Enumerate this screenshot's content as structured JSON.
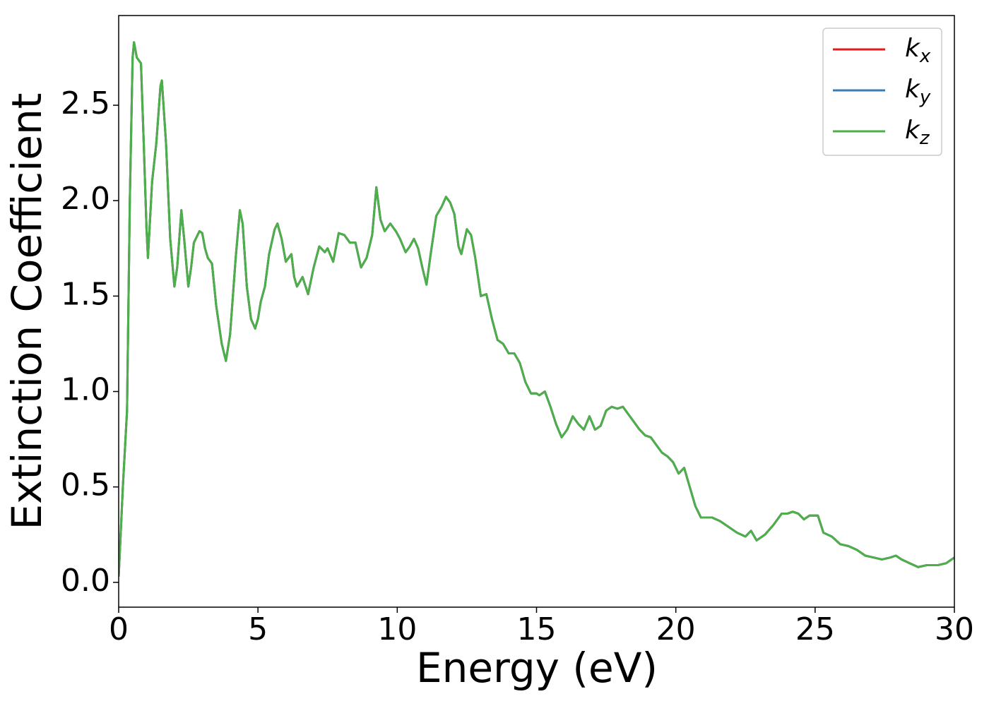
{
  "chart_data": {
    "type": "line",
    "x_label": "Energy (eV)",
    "y_label": "Extinction Coefficient",
    "x": [
      0,
      0.15,
      0.3,
      0.4,
      0.5,
      0.55,
      0.65,
      0.8,
      0.9,
      1.0,
      1.05,
      1.2,
      1.35,
      1.5,
      1.55,
      1.7,
      1.85,
      2.0,
      2.1,
      2.25,
      2.35,
      2.5,
      2.6,
      2.7,
      2.9,
      3.0,
      3.1,
      3.2,
      3.35,
      3.5,
      3.7,
      3.85,
      4.0,
      4.2,
      4.35,
      4.45,
      4.6,
      4.75,
      4.9,
      5.0,
      5.1,
      5.25,
      5.4,
      5.6,
      5.7,
      5.85,
      6.0,
      6.1,
      6.2,
      6.3,
      6.4,
      6.6,
      6.8,
      7.0,
      7.2,
      7.4,
      7.5,
      7.7,
      7.9,
      8.1,
      8.3,
      8.5,
      8.7,
      8.9,
      9.1,
      9.25,
      9.4,
      9.55,
      9.75,
      9.95,
      10.1,
      10.3,
      10.45,
      10.6,
      10.75,
      10.9,
      11.05,
      11.2,
      11.4,
      11.6,
      11.75,
      11.9,
      12.05,
      12.2,
      12.3,
      12.5,
      12.65,
      12.8,
      13.0,
      13.2,
      13.4,
      13.6,
      13.8,
      14.0,
      14.2,
      14.4,
      14.6,
      14.8,
      15.0,
      15.1,
      15.3,
      15.5,
      15.7,
      15.9,
      16.1,
      16.3,
      16.5,
      16.7,
      16.9,
      17.1,
      17.3,
      17.5,
      17.7,
      17.9,
      18.1,
      18.3,
      18.5,
      18.7,
      18.9,
      19.1,
      19.3,
      19.5,
      19.7,
      19.9,
      20.1,
      20.3,
      20.5,
      20.7,
      20.9,
      21.1,
      21.3,
      21.6,
      21.9,
      22.2,
      22.5,
      22.7,
      22.9,
      23.2,
      23.5,
      23.8,
      24.0,
      24.2,
      24.4,
      24.6,
      24.8,
      25.1,
      25.3,
      25.6,
      25.9,
      26.2,
      26.5,
      26.8,
      27.1,
      27.4,
      27.7,
      27.9,
      28.1,
      28.4,
      28.7,
      29.0,
      29.4,
      29.7,
      30.0
    ],
    "series": [
      {
        "name": "k_x",
        "color": "#e41a1c",
        "values": [
          0.03,
          0.5,
          0.9,
          2.0,
          2.75,
          2.83,
          2.75,
          2.72,
          2.3,
          1.85,
          1.7,
          2.1,
          2.3,
          2.6,
          2.63,
          2.3,
          1.8,
          1.55,
          1.65,
          1.95,
          1.8,
          1.55,
          1.65,
          1.78,
          1.84,
          1.83,
          1.75,
          1.7,
          1.67,
          1.45,
          1.25,
          1.16,
          1.3,
          1.7,
          1.95,
          1.88,
          1.55,
          1.38,
          1.33,
          1.38,
          1.47,
          1.55,
          1.72,
          1.85,
          1.88,
          1.8,
          1.68,
          1.7,
          1.72,
          1.6,
          1.55,
          1.6,
          1.51,
          1.65,
          1.76,
          1.73,
          1.75,
          1.68,
          1.83,
          1.82,
          1.78,
          1.78,
          1.65,
          1.7,
          1.82,
          2.07,
          1.9,
          1.84,
          1.88,
          1.84,
          1.8,
          1.73,
          1.76,
          1.8,
          1.75,
          1.65,
          1.56,
          1.72,
          1.92,
          1.97,
          2.02,
          1.99,
          1.93,
          1.76,
          1.72,
          1.85,
          1.82,
          1.7,
          1.5,
          1.51,
          1.38,
          1.27,
          1.25,
          1.2,
          1.2,
          1.15,
          1.05,
          0.99,
          0.99,
          0.98,
          1.0,
          0.92,
          0.83,
          0.76,
          0.8,
          0.87,
          0.83,
          0.8,
          0.87,
          0.8,
          0.82,
          0.9,
          0.92,
          0.91,
          0.92,
          0.88,
          0.84,
          0.8,
          0.77,
          0.76,
          0.72,
          0.68,
          0.66,
          0.63,
          0.57,
          0.6,
          0.5,
          0.4,
          0.34,
          0.34,
          0.34,
          0.32,
          0.29,
          0.26,
          0.24,
          0.27,
          0.22,
          0.25,
          0.3,
          0.36,
          0.36,
          0.37,
          0.36,
          0.33,
          0.35,
          0.35,
          0.26,
          0.24,
          0.2,
          0.19,
          0.17,
          0.14,
          0.13,
          0.12,
          0.13,
          0.14,
          0.12,
          0.1,
          0.08,
          0.09,
          0.09,
          0.1,
          0.13
        ]
      },
      {
        "name": "k_y",
        "color": "#377eb8",
        "values": [
          0.03,
          0.5,
          0.9,
          2.0,
          2.75,
          2.83,
          2.75,
          2.72,
          2.3,
          1.85,
          1.7,
          2.1,
          2.3,
          2.6,
          2.63,
          2.3,
          1.8,
          1.55,
          1.65,
          1.95,
          1.8,
          1.55,
          1.65,
          1.78,
          1.84,
          1.83,
          1.75,
          1.7,
          1.67,
          1.45,
          1.25,
          1.16,
          1.3,
          1.7,
          1.95,
          1.88,
          1.55,
          1.38,
          1.33,
          1.38,
          1.47,
          1.55,
          1.72,
          1.85,
          1.88,
          1.8,
          1.68,
          1.7,
          1.72,
          1.6,
          1.55,
          1.6,
          1.51,
          1.65,
          1.76,
          1.73,
          1.75,
          1.68,
          1.83,
          1.82,
          1.78,
          1.78,
          1.65,
          1.7,
          1.82,
          2.07,
          1.9,
          1.84,
          1.88,
          1.84,
          1.8,
          1.73,
          1.76,
          1.8,
          1.75,
          1.65,
          1.56,
          1.72,
          1.92,
          1.97,
          2.02,
          1.99,
          1.93,
          1.76,
          1.72,
          1.85,
          1.82,
          1.7,
          1.5,
          1.51,
          1.38,
          1.27,
          1.25,
          1.2,
          1.2,
          1.15,
          1.05,
          0.99,
          0.99,
          0.98,
          1.0,
          0.92,
          0.83,
          0.76,
          0.8,
          0.87,
          0.83,
          0.8,
          0.87,
          0.8,
          0.82,
          0.9,
          0.92,
          0.91,
          0.92,
          0.88,
          0.84,
          0.8,
          0.77,
          0.76,
          0.72,
          0.68,
          0.66,
          0.63,
          0.57,
          0.6,
          0.5,
          0.4,
          0.34,
          0.34,
          0.34,
          0.32,
          0.29,
          0.26,
          0.24,
          0.27,
          0.22,
          0.25,
          0.3,
          0.36,
          0.36,
          0.37,
          0.36,
          0.33,
          0.35,
          0.35,
          0.26,
          0.24,
          0.2,
          0.19,
          0.17,
          0.14,
          0.13,
          0.12,
          0.13,
          0.14,
          0.12,
          0.1,
          0.08,
          0.09,
          0.09,
          0.1,
          0.13
        ]
      },
      {
        "name": "k_z",
        "color": "#4daf4a",
        "values": [
          0.03,
          0.5,
          0.9,
          2.0,
          2.75,
          2.83,
          2.75,
          2.72,
          2.3,
          1.85,
          1.7,
          2.1,
          2.3,
          2.6,
          2.63,
          2.3,
          1.8,
          1.55,
          1.65,
          1.95,
          1.8,
          1.55,
          1.65,
          1.78,
          1.84,
          1.83,
          1.75,
          1.7,
          1.67,
          1.45,
          1.25,
          1.16,
          1.3,
          1.7,
          1.95,
          1.88,
          1.55,
          1.38,
          1.33,
          1.38,
          1.47,
          1.55,
          1.72,
          1.85,
          1.88,
          1.8,
          1.68,
          1.7,
          1.72,
          1.6,
          1.55,
          1.6,
          1.51,
          1.65,
          1.76,
          1.73,
          1.75,
          1.68,
          1.83,
          1.82,
          1.78,
          1.78,
          1.65,
          1.7,
          1.82,
          2.07,
          1.9,
          1.84,
          1.88,
          1.84,
          1.8,
          1.73,
          1.76,
          1.8,
          1.75,
          1.65,
          1.56,
          1.72,
          1.92,
          1.97,
          2.02,
          1.99,
          1.93,
          1.76,
          1.72,
          1.85,
          1.82,
          1.7,
          1.5,
          1.51,
          1.38,
          1.27,
          1.25,
          1.2,
          1.2,
          1.15,
          1.05,
          0.99,
          0.99,
          0.98,
          1.0,
          0.92,
          0.83,
          0.76,
          0.8,
          0.87,
          0.83,
          0.8,
          0.87,
          0.8,
          0.82,
          0.9,
          0.92,
          0.91,
          0.92,
          0.88,
          0.84,
          0.8,
          0.77,
          0.76,
          0.72,
          0.68,
          0.66,
          0.63,
          0.57,
          0.6,
          0.5,
          0.4,
          0.34,
          0.34,
          0.34,
          0.32,
          0.29,
          0.26,
          0.24,
          0.27,
          0.22,
          0.25,
          0.3,
          0.36,
          0.36,
          0.37,
          0.36,
          0.33,
          0.35,
          0.35,
          0.26,
          0.24,
          0.2,
          0.19,
          0.17,
          0.14,
          0.13,
          0.12,
          0.13,
          0.14,
          0.12,
          0.1,
          0.08,
          0.09,
          0.09,
          0.1,
          0.13
        ]
      }
    ],
    "xlim": [
      0,
      30
    ],
    "xticks": [
      0,
      5,
      10,
      15,
      20,
      25,
      30
    ],
    "ylim": [
      -0.13,
      2.97
    ],
    "yticks": [
      {
        "value": 0,
        "label": "0.0"
      },
      0.5,
      {
        "value": 1,
        "label": "1.0"
      },
      1.5,
      {
        "value": 2,
        "label": "2.0"
      },
      2.5
    ],
    "grid": false,
    "legend": "upper right"
  }
}
